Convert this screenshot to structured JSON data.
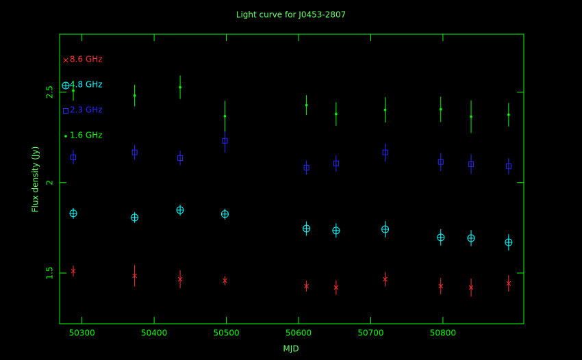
{
  "chart_data": {
    "type": "scatter",
    "title": "Light curve for J0453-2807",
    "x_label": "MJD",
    "y_label": "Flux density (Jy)",
    "x": [
      50288,
      50373,
      50436,
      50498,
      50611,
      50652,
      50720,
      50797,
      50839,
      50891
    ],
    "series": [
      {
        "name": "8.6 GHz",
        "color": "#ff3030",
        "marker": "x",
        "values": [
          1.511,
          1.485,
          1.466,
          1.458,
          1.428,
          1.42,
          1.466,
          1.428,
          1.42,
          1.443
        ],
        "errors": [
          0.03,
          0.06,
          0.05,
          0.025,
          0.03,
          0.04,
          0.04,
          0.045,
          0.05,
          0.045
        ]
      },
      {
        "name": "4.8 GHz",
        "color": "#00ffff",
        "marker": "circle-plus",
        "values": [
          1.83,
          1.807,
          1.848,
          1.826,
          1.746,
          1.735,
          1.742,
          1.697,
          1.693,
          1.67
        ],
        "errors": [
          0.03,
          0.03,
          0.03,
          0.03,
          0.04,
          0.04,
          0.045,
          0.045,
          0.045,
          0.045
        ]
      },
      {
        "name": "2.3 GHz",
        "color": "#2828ff",
        "marker": "square",
        "values": [
          2.14,
          2.167,
          2.136,
          2.231,
          2.083,
          2.106,
          2.167,
          2.114,
          2.102,
          2.091
        ],
        "errors": [
          0.04,
          0.04,
          0.04,
          0.065,
          0.04,
          0.045,
          0.05,
          0.05,
          0.055,
          0.045
        ]
      },
      {
        "name": "1.6 GHz",
        "color": "#00ff00",
        "marker": "dot",
        "values": [
          2.508,
          2.481,
          2.527,
          2.367,
          2.428,
          2.379,
          2.402,
          2.405,
          2.364,
          2.375
        ],
        "errors": [
          0.055,
          0.06,
          0.065,
          0.085,
          0.055,
          0.065,
          0.07,
          0.07,
          0.09,
          0.065
        ]
      }
    ],
    "xlim": [
      50269,
      50912
    ],
    "ylim": [
      1.22,
      2.82
    ],
    "xticks": [
      50300,
      50400,
      50500,
      50600,
      50700,
      50800
    ],
    "yticks": [
      1.5,
      2,
      2.5
    ],
    "axis_color": "#00ff00",
    "legend": "upper left"
  }
}
